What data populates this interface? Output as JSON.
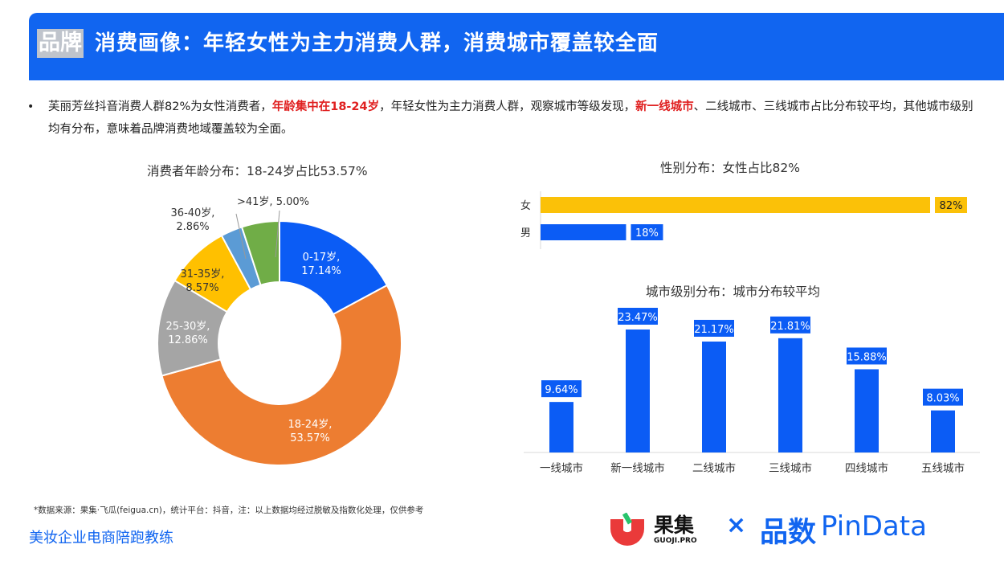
{
  "header": {
    "brand_tag": "品牌",
    "title": "消费画像：年轻女性为主力消费人群，消费城市覆盖较全面"
  },
  "description": {
    "bullet": "•",
    "part1": "芙丽芳丝抖音消费人群82%为女性消费者，",
    "highlight1": "年龄集中在18-24岁",
    "part2": "，年轻女性为主力消费人群，观察城市等级发现，",
    "highlight2": "新一线城市",
    "part3": "、二线城市、三线城市占比分布较平均，其他城市级别均有分布，意味着品牌消费地域覆盖较为全面。"
  },
  "colors": {
    "banner_blue": "#1165f0",
    "highlight_red": "#e02020",
    "bar_blue": "#0b5cf5",
    "bar_gold": "#fbc108"
  },
  "chart_data": [
    {
      "type": "pie",
      "variant": "donut",
      "title": "消费者年龄分布：18-24岁占比53.57%",
      "slices": [
        {
          "label": "0-17岁,",
          "value_label": "17.14%",
          "value": 17.14,
          "color": "#0b5cf5"
        },
        {
          "label": "18-24岁,",
          "value_label": "53.57%",
          "value": 53.57,
          "color": "#ed7d31"
        },
        {
          "label": "25-30岁,",
          "value_label": "12.86%",
          "value": 12.86,
          "color": "#a5a5a5"
        },
        {
          "label": "31-35岁,",
          "value_label": "8.57%",
          "value": 8.57,
          "color": "#ffc000"
        },
        {
          "label": "36-40岁,",
          "value_label": "2.86%",
          "value": 2.86,
          "color": "#5b9bd5"
        },
        {
          "label": ">41岁,",
          "value_label": "5.00%",
          "value": 5.0,
          "color": "#70ad47"
        }
      ]
    },
    {
      "type": "bar",
      "orientation": "horizontal",
      "title": "性别分布：女性占比82%",
      "categories": [
        "女",
        "男"
      ],
      "values": [
        82,
        18
      ],
      "value_labels": [
        "82%",
        "18%"
      ],
      "colors": [
        "#fbc108",
        "#0b5cf5"
      ],
      "xlim": [
        0,
        85
      ]
    },
    {
      "type": "bar",
      "title": "城市级别分布：城市分布较平均",
      "categories": [
        "一线城市",
        "新一线城市",
        "二线城市",
        "三线城市",
        "四线城市",
        "五线城市"
      ],
      "values": [
        9.64,
        23.47,
        21.17,
        21.81,
        15.88,
        8.03
      ],
      "value_labels": [
        "9.64%",
        "23.47%",
        "21.17%",
        "21.81%",
        "15.88%",
        "8.03%"
      ],
      "color": "#0b5cf5",
      "ylim": [
        0,
        25
      ]
    }
  ],
  "footer": {
    "source_note": "*数据来源：果集·飞瓜(feigua.cn)，统计平台：抖音，注：以上数据均经过脱敏及指数化处理，仅供参考",
    "coach_text": "美妆企业电商陪跑教练",
    "logo_guoji_cn": "果集",
    "logo_guoji_en": "GUOJI.PRO",
    "logo_cross": "×",
    "logo_pindata_cn": "品数",
    "logo_pindata_en": "PinData"
  }
}
